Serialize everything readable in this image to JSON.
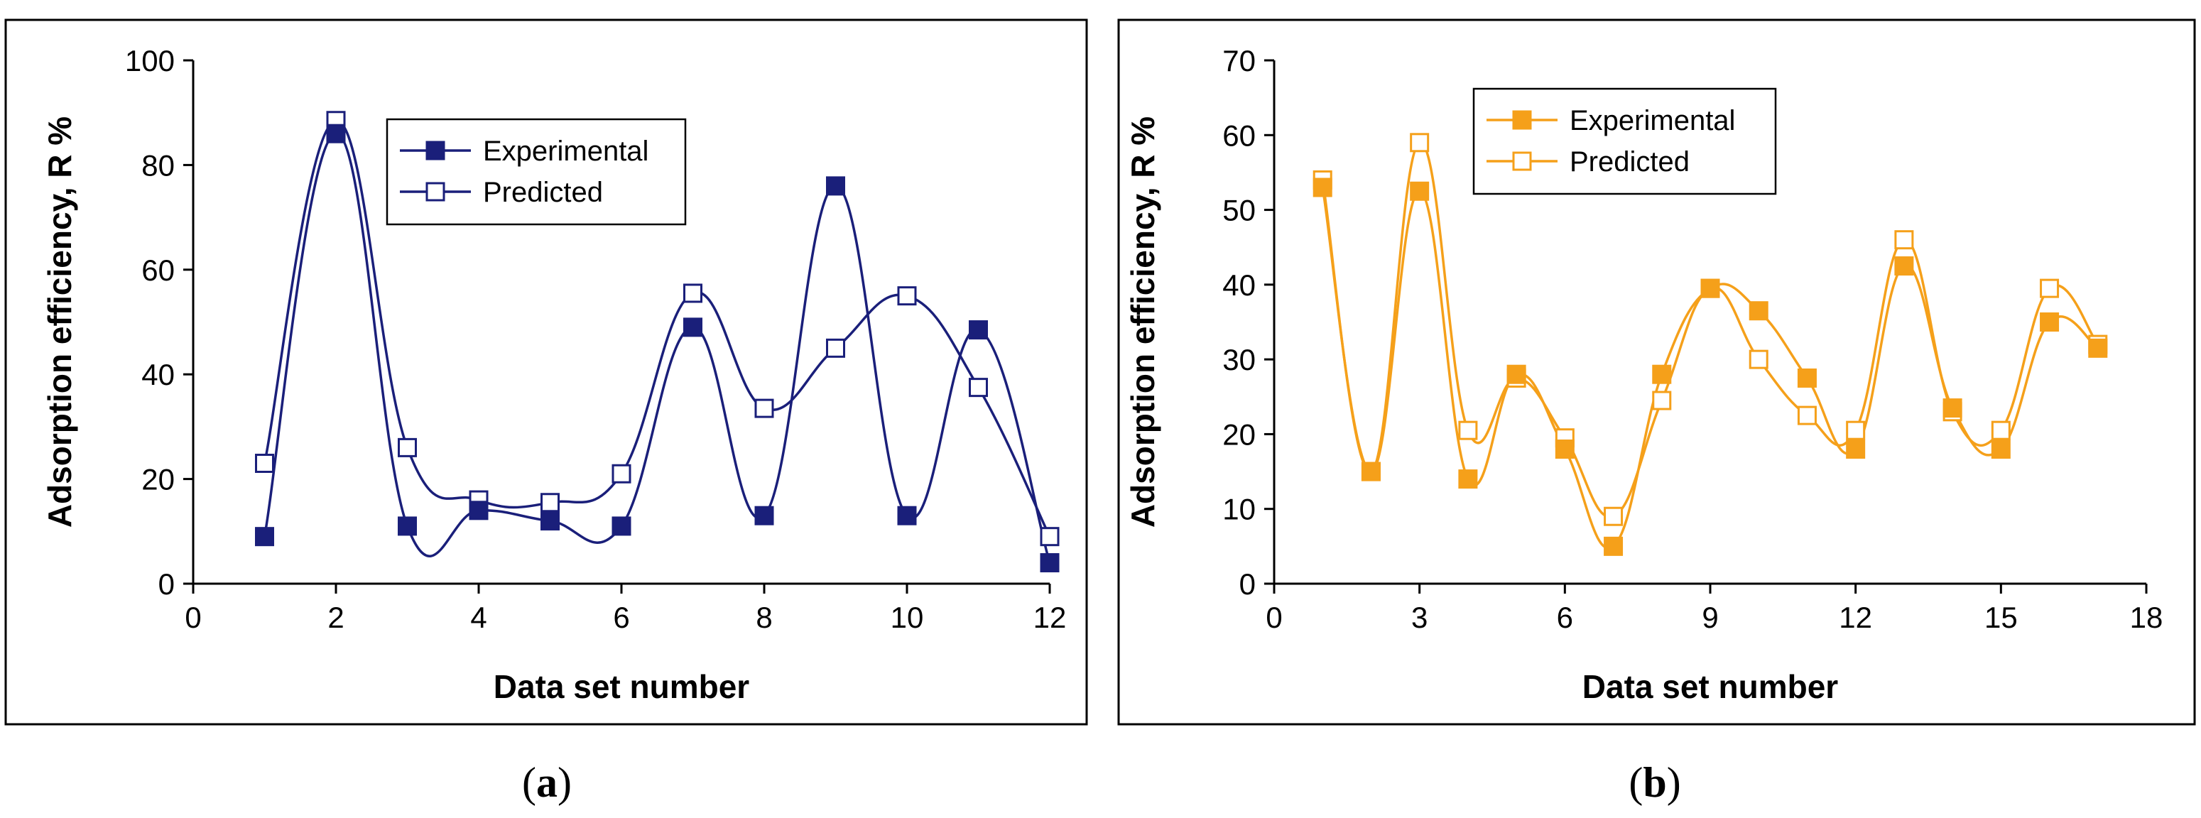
{
  "chart_data": [
    {
      "type": "line",
      "smooth": true,
      "panel_label": "a",
      "xlabel": "Data set number",
      "ylabel": "Adsorption efficiency, R %",
      "xlim": [
        0,
        12
      ],
      "ylim": [
        0,
        100
      ],
      "xticks": [
        "0",
        "2",
        "4",
        "6",
        "8",
        "10",
        "12"
      ],
      "yticks": [
        "0",
        "20",
        "40",
        "60",
        "80",
        "100"
      ],
      "color": "#1a1f7a",
      "legend_position": "top-center",
      "x": [
        1,
        2,
        3,
        4,
        5,
        6,
        7,
        8,
        9,
        10,
        11,
        12
      ],
      "series": [
        {
          "name": "Experimental",
          "marker": "filled-square",
          "values": [
            9,
            86,
            11,
            14,
            12,
            11,
            49,
            13,
            76,
            13,
            48.5,
            4
          ]
        },
        {
          "name": "Predicted",
          "marker": "open-square",
          "values": [
            23,
            88.5,
            26,
            16,
            15.5,
            21,
            55.5,
            33.5,
            45,
            55,
            37.5,
            9
          ]
        }
      ]
    },
    {
      "type": "line",
      "smooth": true,
      "panel_label": "b",
      "xlabel": "Data set number",
      "ylabel": "Adsorption efficiency, R %",
      "xlim": [
        0,
        18
      ],
      "ylim": [
        0,
        70
      ],
      "xticks": [
        "0",
        "3",
        "6",
        "9",
        "12",
        "15",
        "18"
      ],
      "yticks": [
        "0",
        "10",
        "20",
        "30",
        "40",
        "50",
        "60",
        "70"
      ],
      "color": "#f5a01a",
      "legend_position": "top-left",
      "x": [
        1,
        2,
        3,
        4,
        5,
        6,
        7,
        8,
        9,
        10,
        11,
        12,
        13,
        14,
        15,
        16,
        17
      ],
      "series": [
        {
          "name": "Experimental",
          "marker": "filled-square",
          "values": [
            53,
            15,
            52.5,
            14,
            28,
            18,
            5,
            28,
            39.5,
            36.5,
            27.5,
            18,
            42.5,
            23.5,
            18,
            35,
            31.5
          ]
        },
        {
          "name": "Predicted",
          "marker": "open-square",
          "values": [
            54,
            15,
            59,
            20.5,
            27.5,
            19.5,
            9,
            24.5,
            39.5,
            30,
            22.5,
            20.5,
            46,
            23,
            20.5,
            39.5,
            32
          ]
        }
      ]
    }
  ]
}
